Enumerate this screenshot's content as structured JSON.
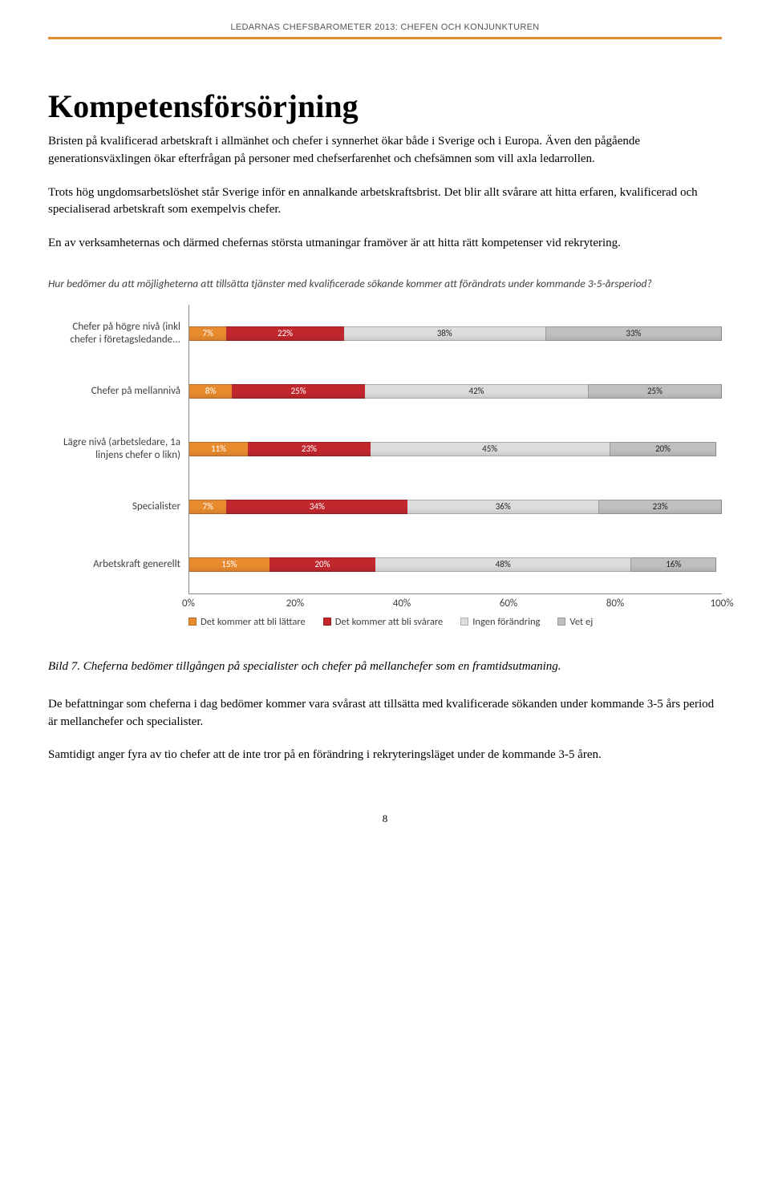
{
  "header": "LEDARNAS CHEFSBAROMETER 2013: CHEFEN OCH KONJUNKTUREN",
  "title": "Kompetensförsörjning",
  "p1": "Bristen på kvalificerad arbetskraft i allmänhet och chefer i synnerhet ökar både i Sverige och i Europa. Även den pågående generationsväxlingen ökar efterfrågan på personer med chefserfarenhet och chefsämnen som vill axla ledarrollen.",
  "p2": "Trots hög ungdomsarbetslöshet står Sverige inför en annalkande arbetskraftsbrist. Det blir allt svårare att hitta erfaren, kvalificerad och specialiserad arbetskraft som exempelvis chefer.",
  "p3": "En av verksamheternas och därmed chefernas största utmaningar framöver är att hitta rätt kompetenser vid rekrytering.",
  "chart": {
    "question": "Hur bedömer du att möjligheterna att tillsätta tjänster med kvalificerade sökande kommer att förändrats under kommande 3-5-årsperiod?",
    "colors": {
      "lattare": "#e88b2e",
      "svarare": "#c1272d",
      "ingen": "#dcdcdc",
      "vetej": "#bfbfbf",
      "axis": "#888888",
      "text": "#404040"
    },
    "legend": [
      {
        "label": "Det kommer att bli lättare",
        "colorKey": "lattare"
      },
      {
        "label": "Det kommer att bli svårare",
        "colorKey": "svarare"
      },
      {
        "label": "Ingen förändring",
        "colorKey": "ingen"
      },
      {
        "label": "Vet ej",
        "colorKey": "vetej"
      }
    ],
    "xticks": [
      "0%",
      "20%",
      "40%",
      "60%",
      "80%",
      "100%"
    ],
    "rows": [
      {
        "label": "Chefer på högre nivå (inkl chefer i företagsledande...",
        "segments": [
          {
            "v": 7,
            "label": "7%",
            "colorKey": "lattare"
          },
          {
            "v": 22,
            "label": "22%",
            "colorKey": "svarare"
          },
          {
            "v": 38,
            "label": "38%",
            "colorKey": "ingen"
          },
          {
            "v": 33,
            "label": "33%",
            "colorKey": "vetej"
          }
        ]
      },
      {
        "label": "Chefer på mellannivå",
        "segments": [
          {
            "v": 8,
            "label": "8%",
            "colorKey": "lattare"
          },
          {
            "v": 25,
            "label": "25%",
            "colorKey": "svarare"
          },
          {
            "v": 42,
            "label": "42%",
            "colorKey": "ingen"
          },
          {
            "v": 25,
            "label": "25%",
            "colorKey": "vetej"
          }
        ]
      },
      {
        "label": "Lägre nivå (arbetsledare, 1a linjens chefer o likn)",
        "segments": [
          {
            "v": 11,
            "label": "11%",
            "colorKey": "lattare"
          },
          {
            "v": 23,
            "label": "23%",
            "colorKey": "svarare"
          },
          {
            "v": 45,
            "label": "45%",
            "colorKey": "ingen"
          },
          {
            "v": 20,
            "label": "20%",
            "colorKey": "vetej"
          }
        ]
      },
      {
        "label": "Specialister",
        "segments": [
          {
            "v": 7,
            "label": "7%",
            "colorKey": "lattare"
          },
          {
            "v": 34,
            "label": "34%",
            "colorKey": "svarare"
          },
          {
            "v": 36,
            "label": "36%",
            "colorKey": "ingen"
          },
          {
            "v": 23,
            "label": "23%",
            "colorKey": "vetej"
          }
        ]
      },
      {
        "label": "Arbetskraft generellt",
        "segments": [
          {
            "v": 15,
            "label": "15%",
            "colorKey": "lattare"
          },
          {
            "v": 20,
            "label": "20%",
            "colorKey": "svarare"
          },
          {
            "v": 48,
            "label": "48%",
            "colorKey": "ingen"
          },
          {
            "v": 16,
            "label": "16%",
            "colorKey": "vetej"
          }
        ]
      }
    ]
  },
  "caption": "Bild 7. Cheferna bedömer tillgången på specialister och chefer på mellanchefer som en framtidsutmaning.",
  "p4": "De befattningar som cheferna i dag bedömer kommer vara svårast att tillsätta med kvalificerade sökanden under kommande 3-5 års period är mellanchefer och specialister.",
  "p5": "Samtidigt anger fyra av tio chefer att de inte tror på en förändring i rekryteringsläget under de kommande 3-5 åren.",
  "pageNum": "8"
}
